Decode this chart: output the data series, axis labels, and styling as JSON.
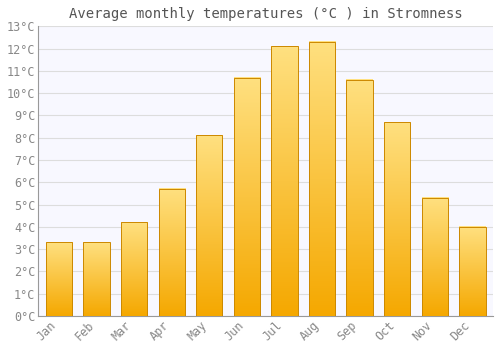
{
  "title": "Average monthly temperatures (°C ) in Stromness",
  "months": [
    "Jan",
    "Feb",
    "Mar",
    "Apr",
    "May",
    "Jun",
    "Jul",
    "Aug",
    "Sep",
    "Oct",
    "Nov",
    "Dec"
  ],
  "values": [
    3.3,
    3.3,
    4.2,
    5.7,
    8.1,
    10.7,
    12.1,
    12.3,
    10.6,
    8.7,
    5.3,
    4.0
  ],
  "bar_color_bottom": "#F5A800",
  "bar_color_top": "#FFE080",
  "bar_edge_color": "#CC8800",
  "background_color": "#FFFFFF",
  "plot_bg_color": "#F8F8FF",
  "grid_color": "#DDDDDD",
  "ylim": [
    0,
    13
  ],
  "yticks": [
    0,
    1,
    2,
    3,
    4,
    5,
    6,
    7,
    8,
    9,
    10,
    11,
    12,
    13
  ],
  "title_fontsize": 10,
  "tick_fontsize": 8.5,
  "font_family": "monospace",
  "title_color": "#555555",
  "tick_color": "#888888"
}
